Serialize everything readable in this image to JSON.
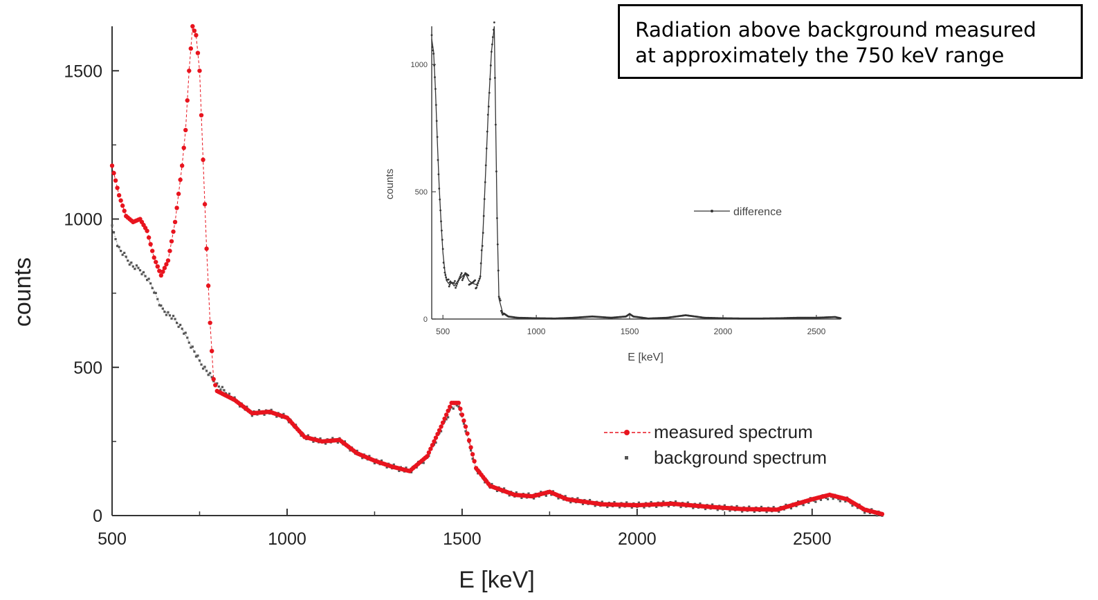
{
  "annotation": {
    "line1": "Radiation above background measured",
    "line2": "at approximately the 750 keV range"
  },
  "chart_data": [
    {
      "type": "scatter",
      "title": "",
      "xlabel": "E [keV]",
      "ylabel": "counts",
      "xlim": [
        500,
        2700
      ],
      "ylim": [
        0,
        1650
      ],
      "xticks": [
        500,
        1000,
        1500,
        2000,
        2500
      ],
      "yticks": [
        0,
        500,
        1000,
        1500
      ],
      "grid": false,
      "legend": "right",
      "series": [
        {
          "name": "measured spectrum",
          "color": "#e8141e",
          "x": [
            500,
            520,
            540,
            560,
            580,
            600,
            620,
            640,
            660,
            680,
            700,
            710,
            720,
            730,
            740,
            750,
            760,
            770,
            780,
            790,
            800,
            850,
            900,
            950,
            1000,
            1050,
            1100,
            1150,
            1200,
            1250,
            1300,
            1350,
            1400,
            1440,
            1470,
            1490,
            1510,
            1540,
            1580,
            1650,
            1700,
            1750,
            1800,
            1900,
            2000,
            2100,
            2200,
            2300,
            2400,
            2500,
            2550,
            2600,
            2650,
            2700
          ],
          "y": [
            1180,
            1080,
            1010,
            990,
            1000,
            960,
            870,
            810,
            860,
            990,
            1180,
            1300,
            1500,
            1650,
            1620,
            1500,
            1200,
            900,
            650,
            460,
            420,
            390,
            345,
            350,
            330,
            265,
            250,
            255,
            210,
            185,
            165,
            150,
            200,
            300,
            380,
            380,
            300,
            160,
            100,
            70,
            65,
            80,
            55,
            38,
            35,
            40,
            30,
            22,
            20,
            55,
            70,
            55,
            20,
            5
          ]
        },
        {
          "name": "background spectrum",
          "color": "#555555",
          "x": [
            500,
            520,
            540,
            560,
            580,
            600,
            620,
            640,
            660,
            680,
            700,
            750,
            800,
            850,
            900,
            950,
            1000,
            1050,
            1100,
            1150,
            1200,
            1250,
            1300,
            1350,
            1400,
            1440,
            1470,
            1490,
            1510,
            1540,
            1580,
            1650,
            1700,
            1750,
            1800,
            1900,
            2000,
            2100,
            2200,
            2300,
            2400,
            2500,
            2550,
            2600,
            2650,
            2700
          ],
          "y": [
            970,
            900,
            870,
            840,
            830,
            800,
            760,
            700,
            680,
            660,
            630,
            520,
            440,
            390,
            345,
            350,
            330,
            265,
            250,
            255,
            210,
            185,
            165,
            150,
            195,
            290,
            365,
            370,
            290,
            155,
            100,
            70,
            65,
            78,
            55,
            38,
            35,
            40,
            30,
            22,
            20,
            52,
            65,
            52,
            18,
            5
          ]
        }
      ]
    },
    {
      "type": "line",
      "title": "",
      "xlabel": "E [keV]",
      "ylabel": "counts",
      "xlim": [
        440,
        2630
      ],
      "ylim": [
        0,
        1150
      ],
      "xticks": [
        500,
        1000,
        1500,
        2000,
        2500
      ],
      "xticklabels": [
        "500",
        "1000",
        "1500",
        "2000",
        "2500"
      ],
      "yticks": [
        0,
        500,
        1000
      ],
      "yticklabels": [
        "0",
        "500",
        "1000"
      ],
      "grid": false,
      "legend": "right",
      "series": [
        {
          "name": "difference",
          "color": "#333333",
          "x": [
            440,
            450,
            460,
            470,
            480,
            490,
            500,
            510,
            520,
            530,
            540,
            560,
            580,
            600,
            620,
            640,
            660,
            680,
            700,
            715,
            730,
            745,
            760,
            775,
            790,
            800,
            820,
            850,
            900,
            1000,
            1100,
            1200,
            1300,
            1400,
            1480,
            1500,
            1520,
            1600,
            1700,
            1800,
            1900,
            2000,
            2100,
            2200,
            2300,
            2400,
            2500,
            2600,
            2630
          ],
          "y": [
            1100,
            1050,
            900,
            700,
            520,
            380,
            260,
            190,
            150,
            140,
            150,
            130,
            150,
            165,
            180,
            150,
            140,
            135,
            160,
            350,
            600,
            850,
            1050,
            1150,
            400,
            80,
            25,
            10,
            5,
            3,
            2,
            5,
            10,
            5,
            10,
            20,
            10,
            2,
            5,
            15,
            5,
            3,
            2,
            2,
            3,
            5,
            5,
            8,
            3
          ]
        }
      ]
    }
  ]
}
